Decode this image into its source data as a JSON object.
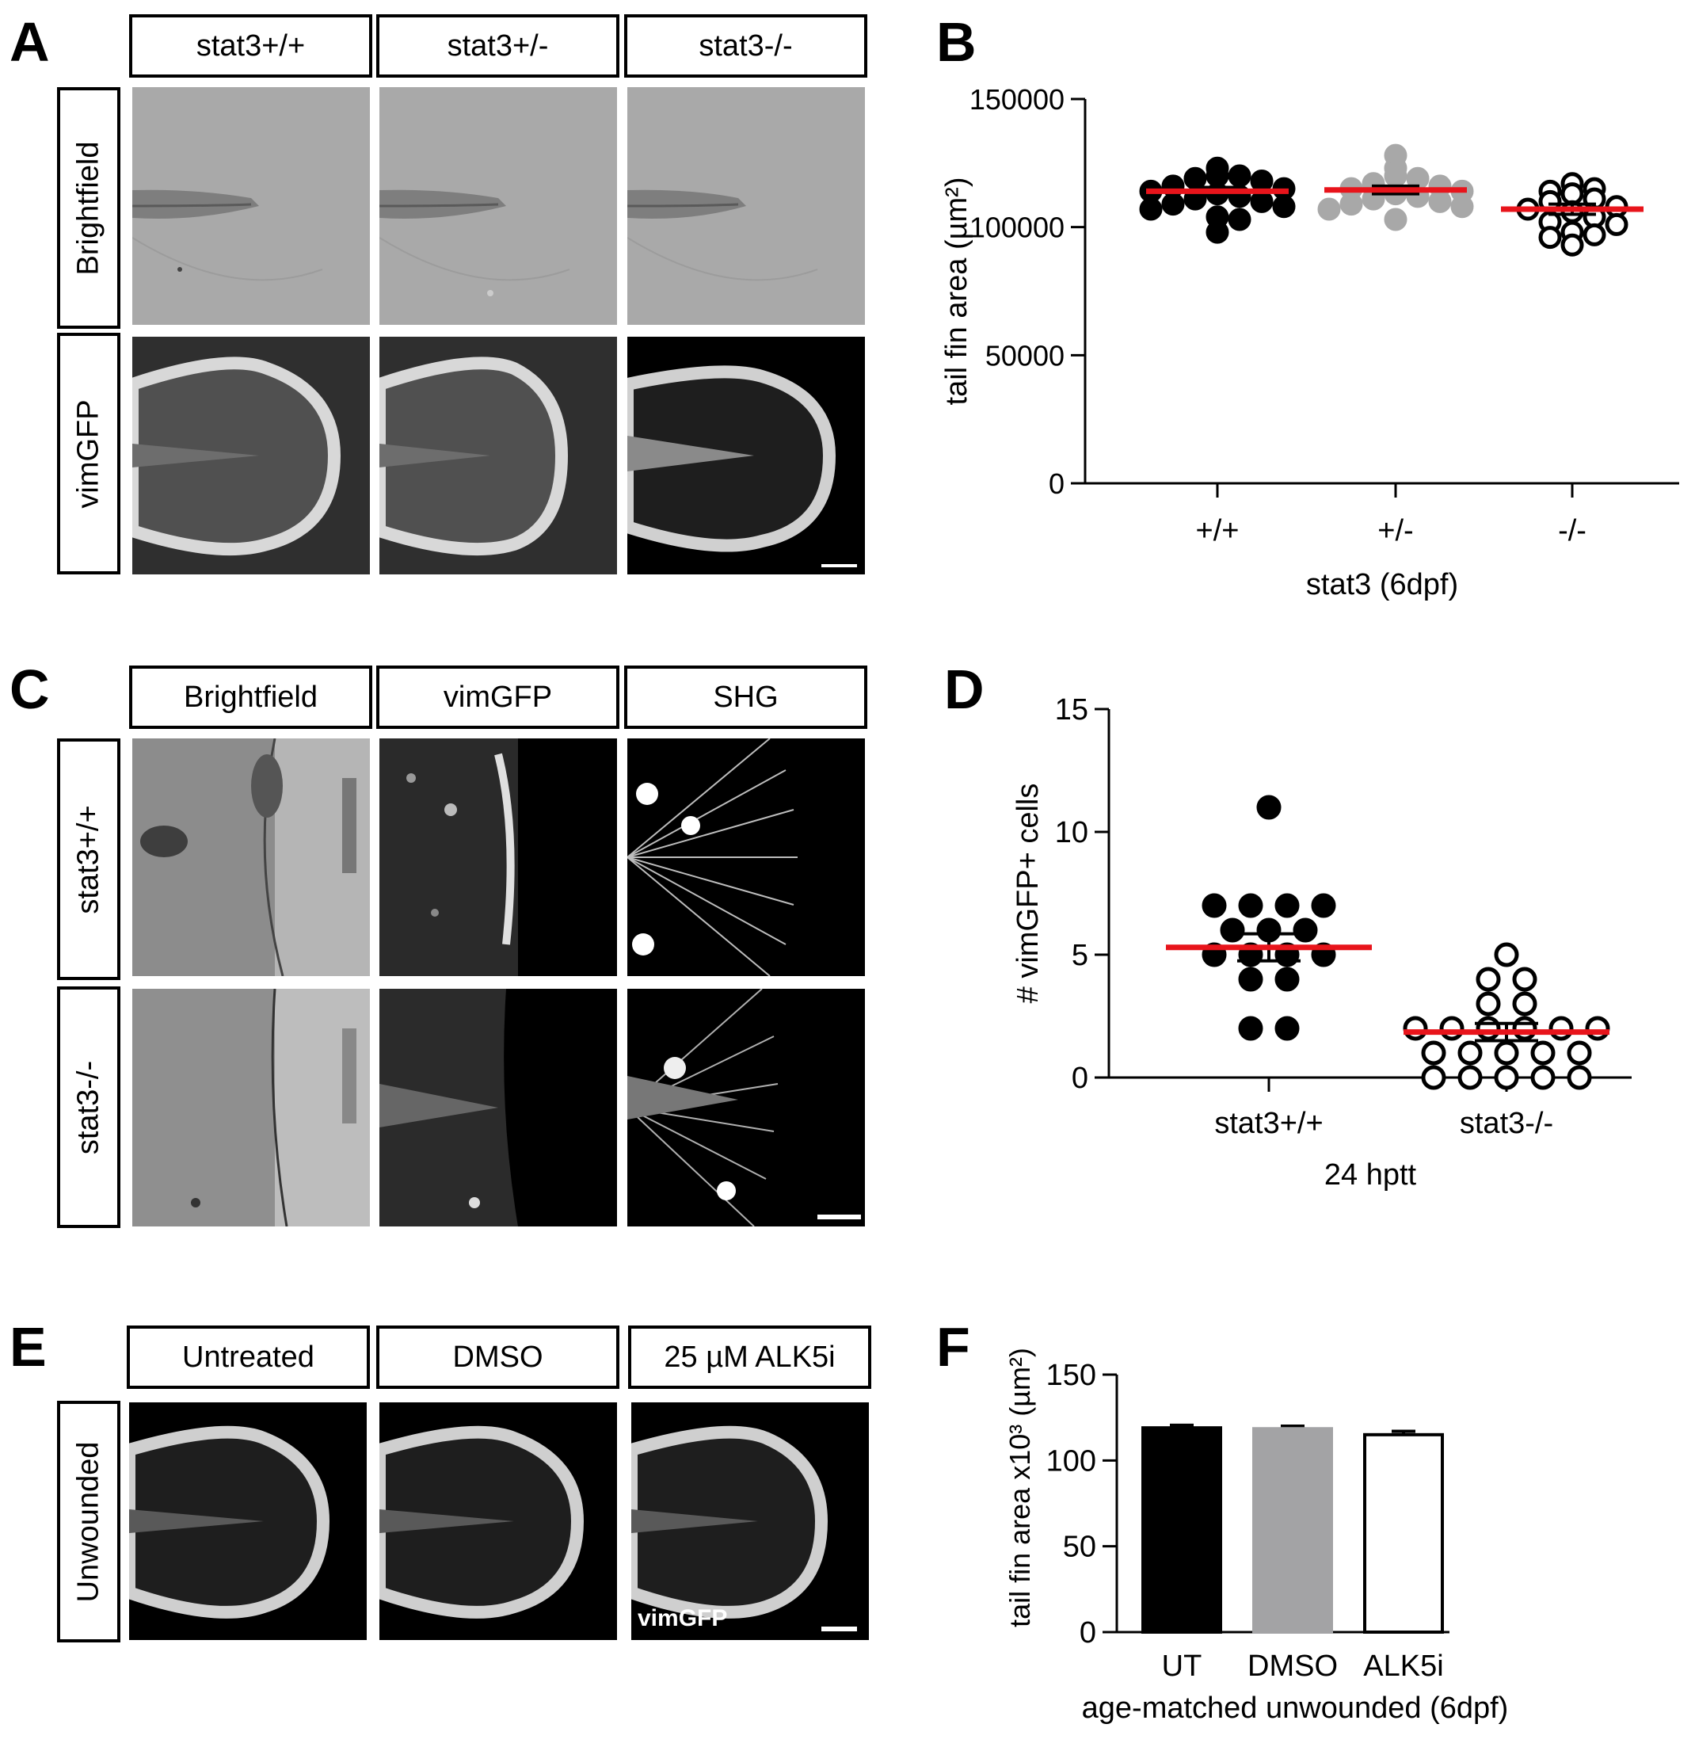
{
  "panels": {
    "A": {
      "label": "A",
      "columns": [
        "stat3+/+",
        "stat3+/-",
        "stat3-/-"
      ],
      "rows": [
        "Brightfield",
        "vimGFP"
      ]
    },
    "B": {
      "label": "B"
    },
    "C": {
      "label": "C",
      "columns": [
        "Brightfield",
        "vimGFP",
        "SHG"
      ],
      "rows": [
        "stat3+/+",
        "stat3-/-"
      ]
    },
    "D": {
      "label": "D"
    },
    "E": {
      "label": "E",
      "columns": [
        "Untreated",
        "DMSO",
        "25 µM ALK5i"
      ],
      "rows": [
        "Unwounded"
      ],
      "inset_label": "vimGFP"
    },
    "F": {
      "label": "F"
    }
  },
  "chart_data": [
    {
      "panel": "B",
      "type": "scatter",
      "categories": [
        "+/+",
        "+/-",
        "-/-"
      ],
      "xlabel": "stat3 (6dpf)",
      "ylabel": "tail fin area (µm²)",
      "ylim": [
        0,
        150000
      ],
      "yticks": [
        "0",
        "50000",
        "100000",
        "150000"
      ],
      "series": [
        {
          "category": "+/+",
          "marker": "filled-black",
          "mean": 114000,
          "sem": 1500,
          "values": [
            123000,
            120000,
            120000,
            119000,
            118000,
            116000,
            115000,
            114000,
            113000,
            112000,
            111000,
            110000,
            109000,
            108000,
            107000,
            104000,
            103000,
            98000
          ]
        },
        {
          "category": "+/-",
          "marker": "filled-gray",
          "mean": 114500,
          "sem": 1500,
          "values": [
            128000,
            123000,
            120000,
            119000,
            117000,
            116000,
            115000,
            114000,
            113000,
            112000,
            111000,
            110000,
            109000,
            108000,
            107000,
            103000
          ]
        },
        {
          "category": "-/-",
          "marker": "open-black",
          "mean": 107000,
          "sem": 2000,
          "values": [
            117000,
            115000,
            114000,
            113000,
            111000,
            110000,
            108000,
            107000,
            106000,
            104000,
            102000,
            101000,
            98000,
            97000,
            96000,
            93000
          ]
        }
      ]
    },
    {
      "panel": "D",
      "type": "scatter",
      "categories": [
        "stat3+/+",
        "stat3-/-"
      ],
      "xlabel": "24 hptt",
      "ylabel": "# vimGFP+ cells",
      "ylim": [
        0,
        15
      ],
      "yticks": [
        "0",
        "5",
        "10",
        "15"
      ],
      "series": [
        {
          "category": "stat3+/+",
          "marker": "filled-black",
          "mean": 5.3,
          "sem": 0.55,
          "values": [
            11,
            7,
            7,
            7,
            7,
            6,
            6,
            6,
            5,
            5,
            5,
            5,
            4,
            4,
            2,
            2
          ]
        },
        {
          "category": "stat3-/-",
          "marker": "open-black",
          "mean": 1.85,
          "sem": 0.35,
          "values": [
            5,
            4,
            4,
            3,
            3,
            2,
            2,
            2,
            2,
            2,
            2,
            1,
            1,
            1,
            1,
            1,
            0,
            0,
            0,
            0,
            0
          ]
        }
      ]
    },
    {
      "panel": "F",
      "type": "bar",
      "categories": [
        "UT",
        "DMSO",
        "ALK5i"
      ],
      "values": [
        119,
        118.5,
        115
      ],
      "errors": [
        1.5,
        1.5,
        2
      ],
      "bar_colors": [
        "#000000",
        "#a3a3a5",
        "#ffffff"
      ],
      "xlabel": "age-matched unwounded (6dpf)",
      "ylabel": "tail fin area x10³ (µm²)",
      "ylim": [
        0,
        150
      ],
      "yticks": [
        "0",
        "50",
        "100",
        "150"
      ]
    }
  ]
}
